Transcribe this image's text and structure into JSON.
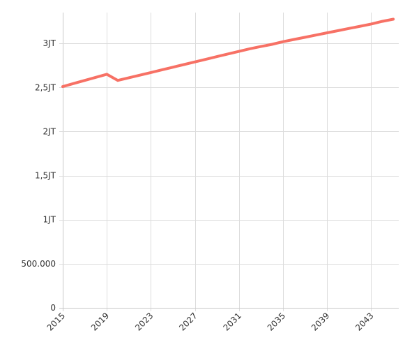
{
  "chart_data": {
    "type": "line",
    "title": "",
    "xlabel": "",
    "ylabel": "",
    "xlim": [
      2015,
      2045.5
    ],
    "ylim": [
      0,
      3350000
    ],
    "grid": true,
    "x_ticks": [
      2015,
      2019,
      2023,
      2027,
      2031,
      2035,
      2039,
      2043
    ],
    "x_tick_labels": [
      "2015",
      "2019",
      "2023",
      "2027",
      "2031",
      "2035",
      "2039",
      "2043"
    ],
    "y_ticks": [
      0,
      500000,
      1000000,
      1500000,
      2000000,
      2500000,
      3000000
    ],
    "y_tick_labels": [
      "0",
      "500.000",
      "1JT",
      "1,5JT",
      "2JT",
      "2,5JT",
      "3JT"
    ],
    "series": [
      {
        "color": "#f77165",
        "x": [
          2015,
          2016,
          2017,
          2018,
          2019,
          2020,
          2021,
          2022,
          2023,
          2024,
          2025,
          2026,
          2027,
          2028,
          2029,
          2030,
          2031,
          2032,
          2033,
          2034,
          2035,
          2036,
          2037,
          2038,
          2039,
          2040,
          2041,
          2042,
          2043,
          2044,
          2045
        ],
        "values": [
          2510000,
          2545000,
          2580000,
          2615000,
          2650000,
          2580000,
          2610000,
          2640000,
          2670000,
          2700000,
          2730000,
          2760000,
          2790000,
          2820000,
          2850000,
          2880000,
          2910000,
          2940000,
          2965000,
          2990000,
          3020000,
          3045000,
          3070000,
          3095000,
          3120000,
          3145000,
          3170000,
          3195000,
          3220000,
          3250000,
          3275000
        ]
      }
    ]
  }
}
